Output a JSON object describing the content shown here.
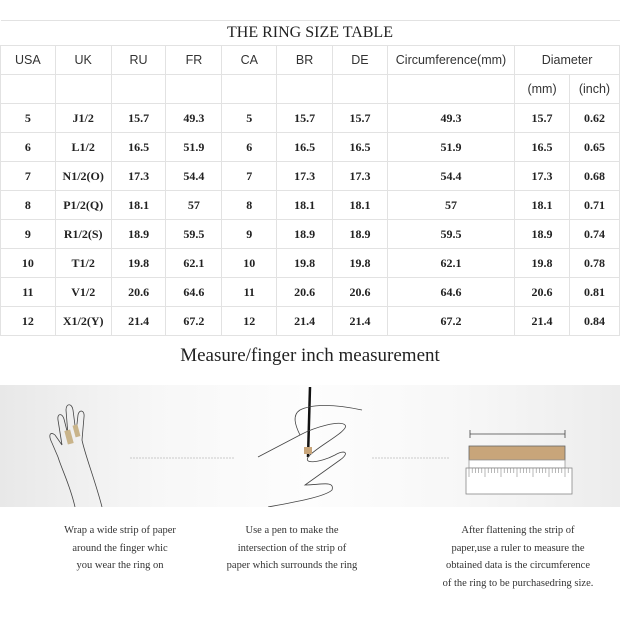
{
  "table": {
    "title": "THE RING SIZE TABLE",
    "headers": [
      "USA",
      "UK",
      "RU",
      "FR",
      "CA",
      "BR",
      "DE",
      "Circumference(mm)",
      "Diameter"
    ],
    "subheaders": [
      "(mm)",
      "(inch)"
    ],
    "rows": [
      [
        "5",
        "J1/2",
        "15.7",
        "49.3",
        "5",
        "15.7",
        "15.7",
        "49.3",
        "15.7",
        "0.62"
      ],
      [
        "6",
        "L1/2",
        "16.5",
        "51.9",
        "6",
        "16.5",
        "16.5",
        "51.9",
        "16.5",
        "0.65"
      ],
      [
        "7",
        "N1/2(O)",
        "17.3",
        "54.4",
        "7",
        "17.3",
        "17.3",
        "54.4",
        "17.3",
        "0.68"
      ],
      [
        "8",
        "P1/2(Q)",
        "18.1",
        "57",
        "8",
        "18.1",
        "18.1",
        "57",
        "18.1",
        "0.71"
      ],
      [
        "9",
        "R1/2(S)",
        "18.9",
        "59.5",
        "9",
        "18.9",
        "18.9",
        "59.5",
        "18.9",
        "0.74"
      ],
      [
        "10",
        "T1/2",
        "19.8",
        "62.1",
        "10",
        "19.8",
        "19.8",
        "62.1",
        "19.8",
        "0.78"
      ],
      [
        "11",
        "V1/2",
        "20.6",
        "64.6",
        "11",
        "20.6",
        "20.6",
        "64.6",
        "20.6",
        "0.81"
      ],
      [
        "12",
        "X1/2(Y)",
        "21.4",
        "67.2",
        "12",
        "21.4",
        "21.4",
        "67.2",
        "21.4",
        "0.84"
      ]
    ]
  },
  "measure": {
    "heading": "Measure/finger inch measurement",
    "steps": [
      {
        "icon": "hand-wrap-paper-icon",
        "lines": [
          "Wrap a wide strip of paper",
          "around the finger whic",
          "you wear the ring on"
        ]
      },
      {
        "icon": "hand-pen-mark-icon",
        "lines": [
          "Use a pen to make the",
          "intersection of the strip of",
          "paper which surrounds the ring"
        ]
      },
      {
        "icon": "ruler-measure-icon",
        "lines": [
          "After flattening the strip of",
          "paper,use a ruler to measure the",
          "obtained data is the circumference",
          "of the ring to be purchasedring size."
        ]
      }
    ]
  },
  "colors": {
    "paper_strip": "#c8a57a",
    "grid": "#e2e2e2"
  }
}
